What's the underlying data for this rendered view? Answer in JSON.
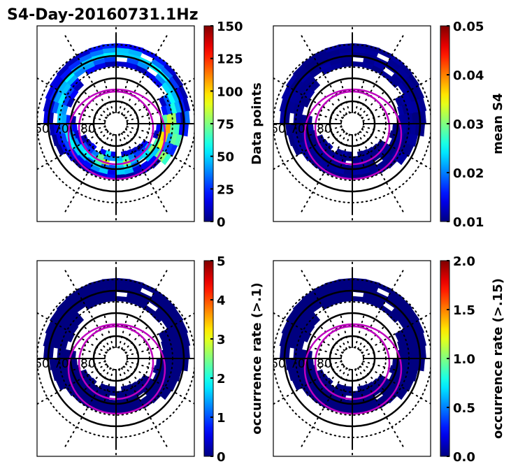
{
  "figure": {
    "title": "S4-Day-20160731.1Hz"
  },
  "chart_data": [
    {
      "type": "heatmap",
      "projection": "polar",
      "panel": "top-left",
      "title": "",
      "latitude_labels": [
        "60",
        "70",
        "80"
      ],
      "latitude_solid_circles": [
        60,
        70,
        80
      ],
      "latitude_dotted_circles": [
        55,
        65,
        75,
        85
      ],
      "meridian_spacing_deg": 30,
      "colormap": "jet",
      "colorbar": {
        "label": "Data points",
        "range": [
          0,
          150
        ],
        "ticks": [
          "0",
          "25",
          "50",
          "75",
          "100",
          "125",
          "150"
        ]
      },
      "band_lat_range": [
        58,
        74
      ],
      "value_description": "ring of bins, mostly 10-60 with hotspots up to ~150 on the dusk/east side",
      "value_range_observed": [
        0,
        150
      ],
      "overlay_curves": [
        {
          "color": "#bf00bf",
          "name": "auroral oval boundary (inner)"
        },
        {
          "color": "#bf00bf",
          "name": "auroral oval boundary (outer)"
        }
      ]
    },
    {
      "type": "heatmap",
      "projection": "polar",
      "panel": "top-right",
      "latitude_labels": [
        "60",
        "70",
        "80"
      ],
      "colormap": "jet",
      "colorbar": {
        "label": "mean S4",
        "range": [
          0.01,
          0.05
        ],
        "ticks": [
          "0.01",
          "0.02",
          "0.03",
          "0.04",
          "0.05"
        ]
      },
      "band_lat_range": [
        58,
        74
      ],
      "value_description": "all bins at bottom of scale (~0.01)",
      "value_range_observed": [
        0.01,
        0.012
      ]
    },
    {
      "type": "heatmap",
      "projection": "polar",
      "panel": "bottom-left",
      "latitude_labels": [
        "60",
        "70",
        "80"
      ],
      "colormap": "jet",
      "colorbar": {
        "label": "occurrence rate (>.1)",
        "range": [
          0,
          5
        ],
        "ticks": [
          "0",
          "1",
          "2",
          "3",
          "4",
          "5"
        ]
      },
      "band_lat_range": [
        58,
        74
      ],
      "value_description": "all bins at 0",
      "value_range_observed": [
        0,
        0
      ]
    },
    {
      "type": "heatmap",
      "projection": "polar",
      "panel": "bottom-right",
      "latitude_labels": [
        "60",
        "70",
        "80"
      ],
      "colormap": "jet",
      "colorbar": {
        "label": "occurrence rate (>.15)",
        "range": [
          0.0,
          2.0
        ],
        "ticks": [
          "0.0",
          "0.5",
          "1.0",
          "1.5",
          "2.0"
        ]
      },
      "band_lat_range": [
        58,
        74
      ],
      "value_description": "all bins at 0",
      "value_range_observed": [
        0,
        0
      ]
    }
  ]
}
